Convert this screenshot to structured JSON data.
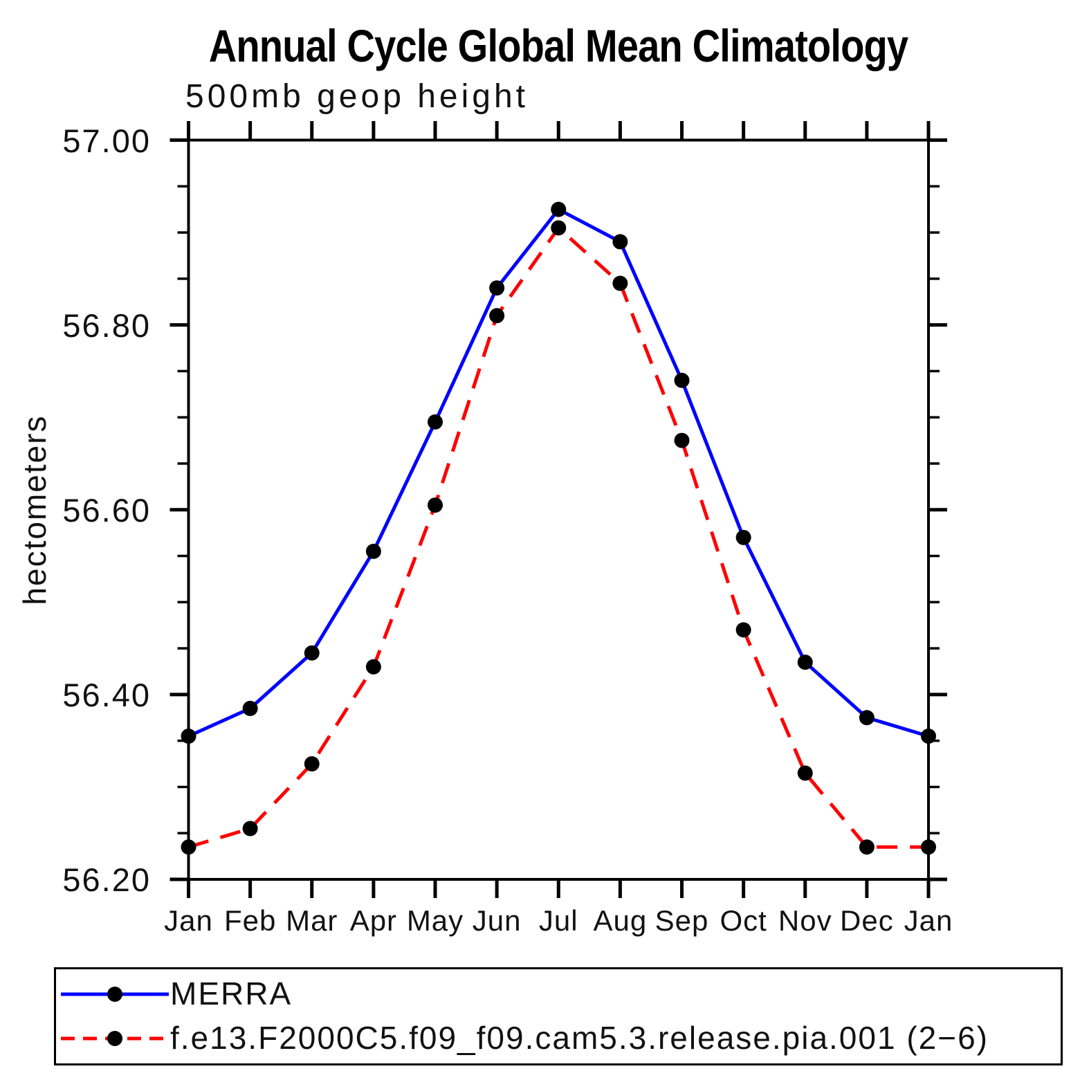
{
  "title": "Annual Cycle Global Mean Climatology",
  "subtitle": "500mb geop height",
  "chart_data": {
    "type": "line",
    "title": "Annual Cycle Global Mean Climatology",
    "subtitle": "500mb geop height",
    "xlabel": "",
    "ylabel": "hectometers",
    "categories": [
      "Jan",
      "Feb",
      "Mar",
      "Apr",
      "May",
      "Jun",
      "Jul",
      "Aug",
      "Sep",
      "Oct",
      "Nov",
      "Dec",
      "Jan"
    ],
    "ylim": [
      56.2,
      57.0
    ],
    "y_ticks_major": [
      56.2,
      56.4,
      56.6,
      56.8,
      57.0
    ],
    "y_tick_labels": [
      "56.20",
      "56.40",
      "56.60",
      "56.80",
      "57.00"
    ],
    "y_minor_step": 0.05,
    "grid": false,
    "legend_position": "bottom",
    "frame_color": "#000000",
    "marker_color": "#000000",
    "series": [
      {
        "name": "MERRA",
        "color": "#0000ff",
        "style": "solid",
        "marker": "filled-circle",
        "values": [
          56.355,
          56.385,
          56.445,
          56.555,
          56.695,
          56.84,
          56.925,
          56.89,
          56.74,
          56.57,
          56.435,
          56.375,
          56.355
        ]
      },
      {
        "name": "f.e13.F2000C5.f09_f09.cam5.3.release.pia.001 (2−6)",
        "color": "#ff0000",
        "style": "dashed",
        "marker": "filled-circle",
        "values": [
          56.235,
          56.255,
          56.325,
          56.43,
          56.605,
          56.81,
          56.905,
          56.845,
          56.675,
          56.47,
          56.315,
          56.235,
          56.235
        ]
      }
    ]
  }
}
